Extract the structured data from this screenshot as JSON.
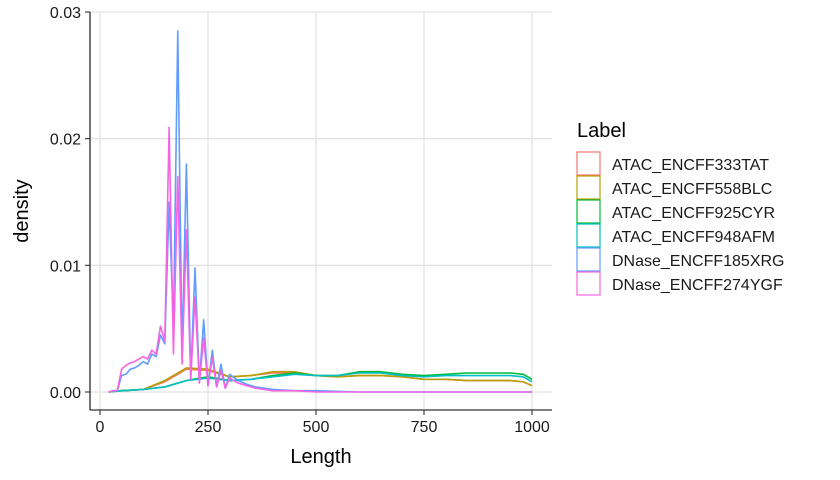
{
  "chart_data": {
    "type": "line",
    "xlabel": "Length",
    "ylabel": "density",
    "xlim": [
      0,
      1000
    ],
    "ylim": [
      0,
      0.03
    ],
    "x_ticks": [
      0,
      250,
      500,
      750,
      1000
    ],
    "x_tick_labels": [
      "0",
      "250",
      "500",
      "750",
      "1000"
    ],
    "y_ticks": [
      0,
      0.01,
      0.02,
      0.03
    ],
    "y_tick_labels": [
      "0.00",
      "0.01",
      "0.02",
      "0.03"
    ],
    "grid": true,
    "legend": {
      "title": "Label",
      "position": "right"
    },
    "series": [
      {
        "name": "ATAC_ENCFF333TAT",
        "color": "#F8766D",
        "x": [
          20,
          50,
          100,
          150,
          200,
          250,
          300,
          350,
          400,
          450,
          500,
          550,
          600,
          650,
          700,
          750,
          800,
          850,
          900,
          950,
          980,
          1000
        ],
        "y": [
          0,
          0.0001,
          0.0002,
          0.0008,
          0.0018,
          0.0017,
          0.0012,
          0.0013,
          0.0015,
          0.0015,
          0.0013,
          0.0012,
          0.0013,
          0.0013,
          0.0012,
          0.001,
          0.001,
          0.0009,
          0.0009,
          0.0009,
          0.0008,
          0.0005
        ]
      },
      {
        "name": "ATAC_ENCFF558BLC",
        "color": "#B79F00",
        "x": [
          20,
          50,
          100,
          150,
          200,
          250,
          300,
          350,
          400,
          450,
          500,
          550,
          600,
          650,
          700,
          750,
          800,
          850,
          900,
          950,
          980,
          1000
        ],
        "y": [
          0,
          0.0001,
          0.0002,
          0.0009,
          0.0019,
          0.0018,
          0.0012,
          0.0013,
          0.0016,
          0.0016,
          0.0013,
          0.0012,
          0.0013,
          0.0013,
          0.0012,
          0.001,
          0.001,
          0.0009,
          0.0009,
          0.0009,
          0.0008,
          0.0005
        ]
      },
      {
        "name": "ATAC_ENCFF925CYR",
        "color": "#00BA38",
        "x": [
          20,
          50,
          100,
          150,
          200,
          250,
          300,
          350,
          400,
          450,
          500,
          550,
          600,
          650,
          700,
          750,
          800,
          850,
          900,
          950,
          980,
          1000
        ],
        "y": [
          0,
          0.0001,
          0.0002,
          0.0004,
          0.0009,
          0.0012,
          0.0009,
          0.001,
          0.0013,
          0.0015,
          0.0013,
          0.0013,
          0.0016,
          0.0016,
          0.0014,
          0.0013,
          0.0014,
          0.0015,
          0.0015,
          0.0015,
          0.0014,
          0.001
        ]
      },
      {
        "name": "ATAC_ENCFF948AFM",
        "color": "#00BFC4",
        "x": [
          20,
          50,
          100,
          150,
          200,
          250,
          300,
          350,
          400,
          450,
          500,
          550,
          600,
          650,
          700,
          750,
          800,
          850,
          900,
          950,
          980,
          1000
        ],
        "y": [
          0,
          0.0001,
          0.0002,
          0.0004,
          0.0009,
          0.0011,
          0.0009,
          0.001,
          0.0012,
          0.0014,
          0.0013,
          0.0013,
          0.0015,
          0.0015,
          0.0013,
          0.0012,
          0.0013,
          0.0013,
          0.0013,
          0.0013,
          0.0012,
          0.0008
        ]
      },
      {
        "name": "DNase_ENCFF185XRG",
        "color": "#619CFF",
        "x": [
          20,
          30,
          40,
          50,
          60,
          70,
          80,
          90,
          100,
          110,
          120,
          130,
          140,
          150,
          160,
          170,
          180,
          190,
          200,
          210,
          220,
          230,
          240,
          250,
          260,
          270,
          280,
          290,
          300,
          320,
          340,
          360,
          380,
          400,
          450,
          500,
          600,
          700,
          800,
          900,
          1000
        ],
        "y": [
          0,
          0.0001,
          0.0001,
          0.0013,
          0.0014,
          0.0018,
          0.0019,
          0.0021,
          0.0024,
          0.0022,
          0.003,
          0.0028,
          0.0045,
          0.0038,
          0.015,
          0.005,
          0.0285,
          0.003,
          0.018,
          0.0012,
          0.0098,
          0.0008,
          0.0057,
          0.0005,
          0.0033,
          0.0004,
          0.0022,
          0.0003,
          0.0014,
          0.0009,
          0.0006,
          0.0004,
          0.0003,
          0.0002,
          0.0001,
          0.0001,
          0,
          0,
          0,
          0,
          0
        ]
      },
      {
        "name": "DNase_ENCFF274YGF",
        "color": "#F564E3",
        "x": [
          20,
          30,
          40,
          50,
          60,
          70,
          80,
          90,
          100,
          110,
          120,
          130,
          140,
          150,
          160,
          170,
          180,
          190,
          200,
          210,
          220,
          230,
          240,
          250,
          260,
          270,
          280,
          290,
          300,
          320,
          340,
          360,
          380,
          400,
          450,
          500,
          600,
          700,
          800,
          900,
          1000
        ],
        "y": [
          0,
          0.0001,
          0.0001,
          0.0018,
          0.0021,
          0.0023,
          0.0024,
          0.0026,
          0.0028,
          0.0026,
          0.0033,
          0.003,
          0.0052,
          0.004,
          0.0209,
          0.003,
          0.017,
          0.0022,
          0.0128,
          0.001,
          0.0075,
          0.0007,
          0.0043,
          0.0005,
          0.0027,
          0.0004,
          0.0017,
          0.0003,
          0.0011,
          0.0007,
          0.0005,
          0.0003,
          0.0002,
          0.0001,
          0.0001,
          0,
          0,
          0,
          0,
          0,
          0
        ]
      }
    ]
  }
}
